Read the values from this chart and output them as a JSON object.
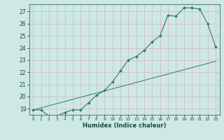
{
  "xlabel": "Humidex (Indice chaleur)",
  "bg_color": "#cde8e5",
  "grid_color": "#b8d4d0",
  "line_color": "#2d7a6e",
  "xlim": [
    -0.5,
    23.5
  ],
  "ylim": [
    18.5,
    27.6
  ],
  "yticks": [
    19,
    20,
    21,
    22,
    23,
    24,
    25,
    26,
    27
  ],
  "xticks": [
    0,
    1,
    2,
    3,
    4,
    5,
    6,
    7,
    8,
    9,
    10,
    11,
    12,
    13,
    14,
    15,
    16,
    17,
    18,
    19,
    20,
    21,
    22,
    23
  ],
  "curve1_x": [
    0,
    1,
    2,
    3,
    4,
    5,
    6,
    7,
    8,
    9,
    10,
    11,
    12,
    13,
    14,
    15,
    16,
    17,
    18,
    19,
    20,
    21,
    22,
    23
  ],
  "curve1_y": [
    18.9,
    18.9,
    18.4,
    18.4,
    18.7,
    18.9,
    18.9,
    19.5,
    20.1,
    20.5,
    21.2,
    22.1,
    23.0,
    23.3,
    23.8,
    24.5,
    25.0,
    26.7,
    26.6,
    27.3,
    27.3,
    27.2,
    26.0,
    24.1
  ],
  "curve2_x": [
    0,
    23
  ],
  "curve2_y": [
    18.9,
    22.9
  ]
}
